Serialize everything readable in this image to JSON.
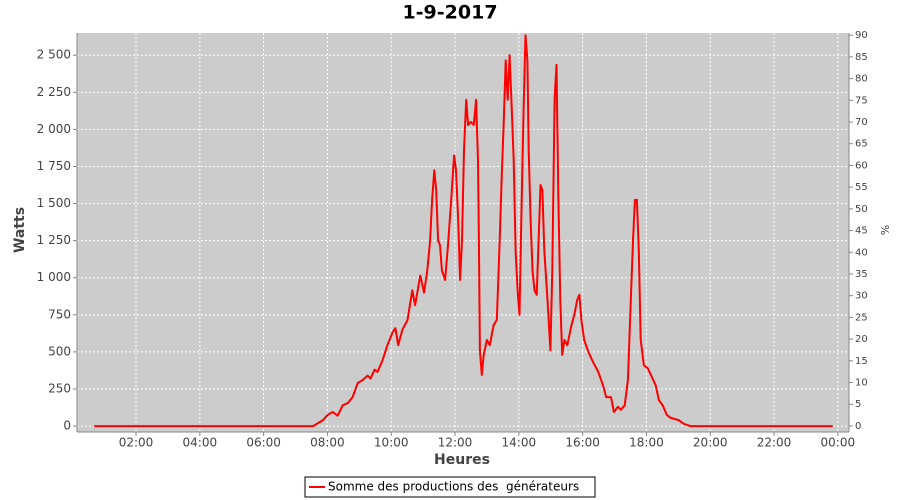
{
  "chart_data": {
    "type": "line",
    "title": "1-9-2017",
    "xlabel": "Heures",
    "ylabel": "Watts",
    "y2label": "%",
    "x": [
      0.69,
      7.55,
      7.86,
      8.01,
      8.17,
      8.32,
      8.48,
      8.64,
      8.79,
      8.95,
      9.1,
      9.26,
      9.35,
      9.48,
      9.57,
      9.73,
      9.88,
      10.04,
      10.13,
      10.22,
      10.35,
      10.51,
      10.66,
      10.75,
      10.91,
      11.03,
      11.13,
      11.22,
      11.28,
      11.35,
      11.41,
      11.47,
      11.53,
      11.59,
      11.69,
      11.78,
      11.88,
      11.97,
      12.03,
      12.1,
      12.16,
      12.22,
      12.28,
      12.35,
      12.41,
      12.5,
      12.59,
      12.66,
      12.72,
      12.75,
      12.78,
      12.84,
      12.9,
      13.0,
      13.09,
      13.21,
      13.31,
      13.4,
      13.46,
      13.53,
      13.59,
      13.65,
      13.71,
      13.78,
      13.84,
      13.9,
      13.96,
      14.02,
      14.09,
      14.15,
      14.21,
      14.27,
      14.31,
      14.37,
      14.43,
      14.49,
      14.56,
      14.62,
      14.68,
      14.74,
      14.8,
      14.9,
      14.99,
      15.05,
      15.12,
      15.18,
      15.24,
      15.3,
      15.36,
      15.43,
      15.52,
      15.65,
      15.74,
      15.83,
      15.9,
      15.96,
      16.05,
      16.18,
      16.33,
      16.49,
      16.64,
      16.74,
      16.89,
      16.98,
      17.11,
      17.2,
      17.32,
      17.42,
      17.51,
      17.58,
      17.64,
      17.7,
      17.76,
      17.82,
      17.92,
      18.04,
      18.14,
      18.29,
      18.39,
      18.51,
      18.64,
      18.76,
      19.01,
      19.17,
      19.38,
      23.84
    ],
    "series": [
      {
        "name": "Somme des productions des  générateurs",
        "color": "#ff0000",
        "values": [
          0,
          0,
          40,
          75,
          95,
          70,
          140,
          155,
          195,
          290,
          310,
          340,
          320,
          380,
          365,
          445,
          545,
          630,
          660,
          545,
          650,
          715,
          915,
          815,
          1015,
          900,
          1050,
          1250,
          1525,
          1725,
          1590,
          1250,
          1220,
          1050,
          985,
          1220,
          1525,
          1825,
          1725,
          1390,
          985,
          1250,
          1860,
          2200,
          2030,
          2050,
          2030,
          2200,
          1790,
          1185,
          510,
          345,
          480,
          580,
          545,
          680,
          715,
          1250,
          1660,
          2060,
          2465,
          2200,
          2500,
          2130,
          1790,
          1185,
          915,
          750,
          1525,
          2130,
          2635,
          2465,
          1860,
          1390,
          1050,
          915,
          885,
          1250,
          1625,
          1590,
          1185,
          850,
          510,
          1050,
          2200,
          2435,
          1525,
          850,
          480,
          580,
          545,
          680,
          750,
          850,
          885,
          715,
          580,
          500,
          430,
          365,
          275,
          195,
          195,
          95,
          130,
          110,
          140,
          310,
          850,
          1250,
          1525,
          1525,
          1185,
          580,
          410,
          390,
          345,
          275,
          175,
          140,
          75,
          55,
          40,
          15,
          0,
          0
        ]
      }
    ],
    "xlim": [
      0.15,
      24.35
    ],
    "xticks": [
      {
        "value": 2,
        "label": "02:00"
      },
      {
        "value": 4,
        "label": "04:00"
      },
      {
        "value": 6,
        "label": "06:00"
      },
      {
        "value": 8,
        "label": "08:00"
      },
      {
        "value": 10,
        "label": "10:00"
      },
      {
        "value": 12,
        "label": "12:00"
      },
      {
        "value": 14,
        "label": "14:00"
      },
      {
        "value": 16,
        "label": "16:00"
      },
      {
        "value": 18,
        "label": "18:00"
      },
      {
        "value": 20,
        "label": "20:00"
      },
      {
        "value": 22,
        "label": "22:00"
      },
      {
        "value": 24,
        "label": "00:00"
      }
    ],
    "ylim": [
      -40,
      2650
    ],
    "yticks": [
      0,
      250,
      500,
      750,
      {
        "value": 1000,
        "label": "1 000"
      },
      {
        "value": 1250,
        "label": "1 250"
      },
      {
        "value": 1500,
        "label": "1 500"
      },
      {
        "value": 1750,
        "label": "1 750"
      },
      {
        "value": 2000,
        "label": "2 000"
      },
      {
        "value": 2250,
        "label": "2 250"
      },
      {
        "value": 2500,
        "label": "2 500"
      }
    ],
    "y2lim": [
      -1.4,
      90.5
    ],
    "y2ticks": [
      0,
      5,
      10,
      15,
      20,
      25,
      30,
      35,
      40,
      45,
      50,
      55,
      60,
      65,
      70,
      75,
      80,
      85,
      90
    ],
    "grid": true
  }
}
